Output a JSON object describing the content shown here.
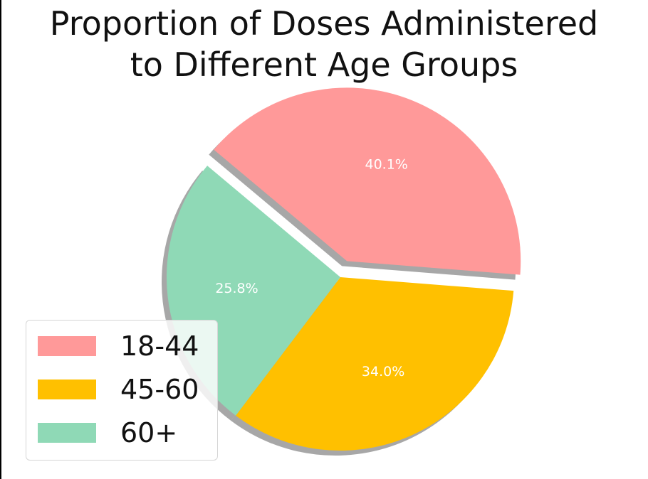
{
  "chart_data": {
    "type": "pie",
    "title": [
      "Proportion of Doses Administered",
      "to Different Age Groups"
    ],
    "categories": [
      "18-44",
      "45-60",
      "60+"
    ],
    "values": [
      40.1,
      34.0,
      25.8
    ],
    "value_labels": [
      "40.1%",
      "34.0%",
      "25.8%"
    ],
    "colors": [
      "#ff9999",
      "#ffc000",
      "#8fd9b6"
    ],
    "explode": [
      0.1,
      0,
      0
    ],
    "shadow": true,
    "start_angle_deg": 140,
    "legend": {
      "placement": "lower-left"
    }
  }
}
